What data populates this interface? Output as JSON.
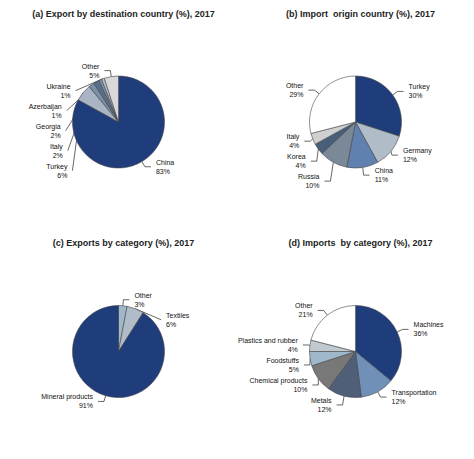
{
  "chart_data": [
    {
      "type": "pie",
      "title": "(a) Export by destination country (%), 2017",
      "categories": [
        "China",
        "Turkey",
        "Italy",
        "Georgia",
        "Azerbaijan",
        "Ukraine",
        "Other"
      ],
      "values": [
        83,
        6,
        2,
        2,
        1,
        1,
        5
      ],
      "value_labels": [
        "83%",
        "6%",
        "2%",
        "2%",
        "1%",
        "1%",
        "5%"
      ],
      "colors": [
        "#1f3d7a",
        "#aab4c4",
        "#7a8fa8",
        "#5a6f8a",
        "#8090a8",
        "#b8c4d0",
        "#d8d8d8"
      ]
    },
    {
      "type": "pie",
      "title": "(b) Import  origin country (%), 2017",
      "categories": [
        "Turkey",
        "Germany",
        "China",
        "Russia",
        "Korea",
        "Italy",
        "Other"
      ],
      "values": [
        30,
        12,
        11,
        10,
        4,
        4,
        29
      ],
      "value_labels": [
        "30%",
        "12%",
        "11%",
        "10%",
        "4%",
        "4%",
        "29%"
      ],
      "colors": [
        "#1f3d7a",
        "#b0bcc8",
        "#6080b0",
        "#7a8898",
        "#485f7a",
        "#d0d0d0",
        "#ffffff"
      ]
    },
    {
      "type": "pie",
      "title": "(c) Exports by category (%), 2017",
      "categories": [
        "Other",
        "Textiles",
        "Mineral products"
      ],
      "values": [
        3,
        6,
        91
      ],
      "value_labels": [
        "3%",
        "6%",
        "91%"
      ],
      "colors": [
        "#a0b8cc",
        "#b0bcc8",
        "#1f3d7a"
      ]
    },
    {
      "type": "pie",
      "title": "(d) Imports  by category (%), 2017",
      "categories": [
        "Machines",
        "Transportation",
        "Metals",
        "Chemical products",
        "Foodstuffs",
        "Plastics and rubber",
        "Other"
      ],
      "values": [
        36,
        12,
        12,
        10,
        5,
        4,
        21
      ],
      "value_labels": [
        "36%",
        "12%",
        "12%",
        "10%",
        "5%",
        "4%",
        "21%"
      ],
      "colors": [
        "#1f3d7a",
        "#7090b8",
        "#505f78",
        "#787878",
        "#a0b8cc",
        "#c0c8d0",
        "#ffffff"
      ]
    }
  ]
}
